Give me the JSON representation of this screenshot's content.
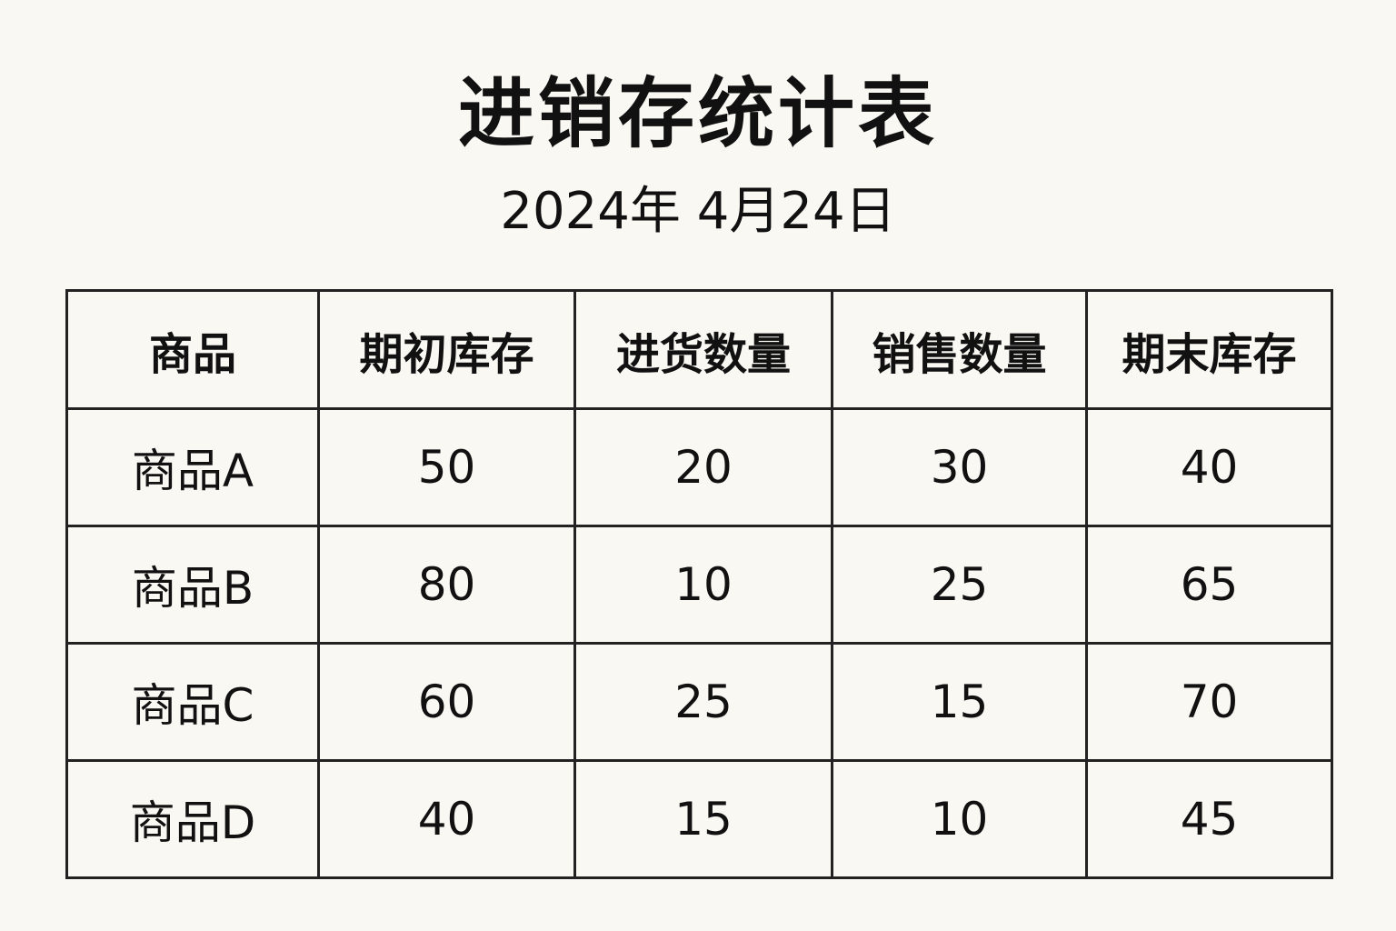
{
  "title": "进销存统计表",
  "date": "2024年 4月24日",
  "table": {
    "headers": [
      "商品",
      "期初库存",
      "进货数量",
      "销售数量",
      "期末库存"
    ],
    "rows": [
      [
        "商品A",
        "50",
        "20",
        "30",
        "40"
      ],
      [
        "商品B",
        "80",
        "10",
        "25",
        "65"
      ],
      [
        "商品C",
        "60",
        "25",
        "15",
        "70"
      ],
      [
        "商品D",
        "40",
        "15",
        "10",
        "45"
      ]
    ]
  }
}
